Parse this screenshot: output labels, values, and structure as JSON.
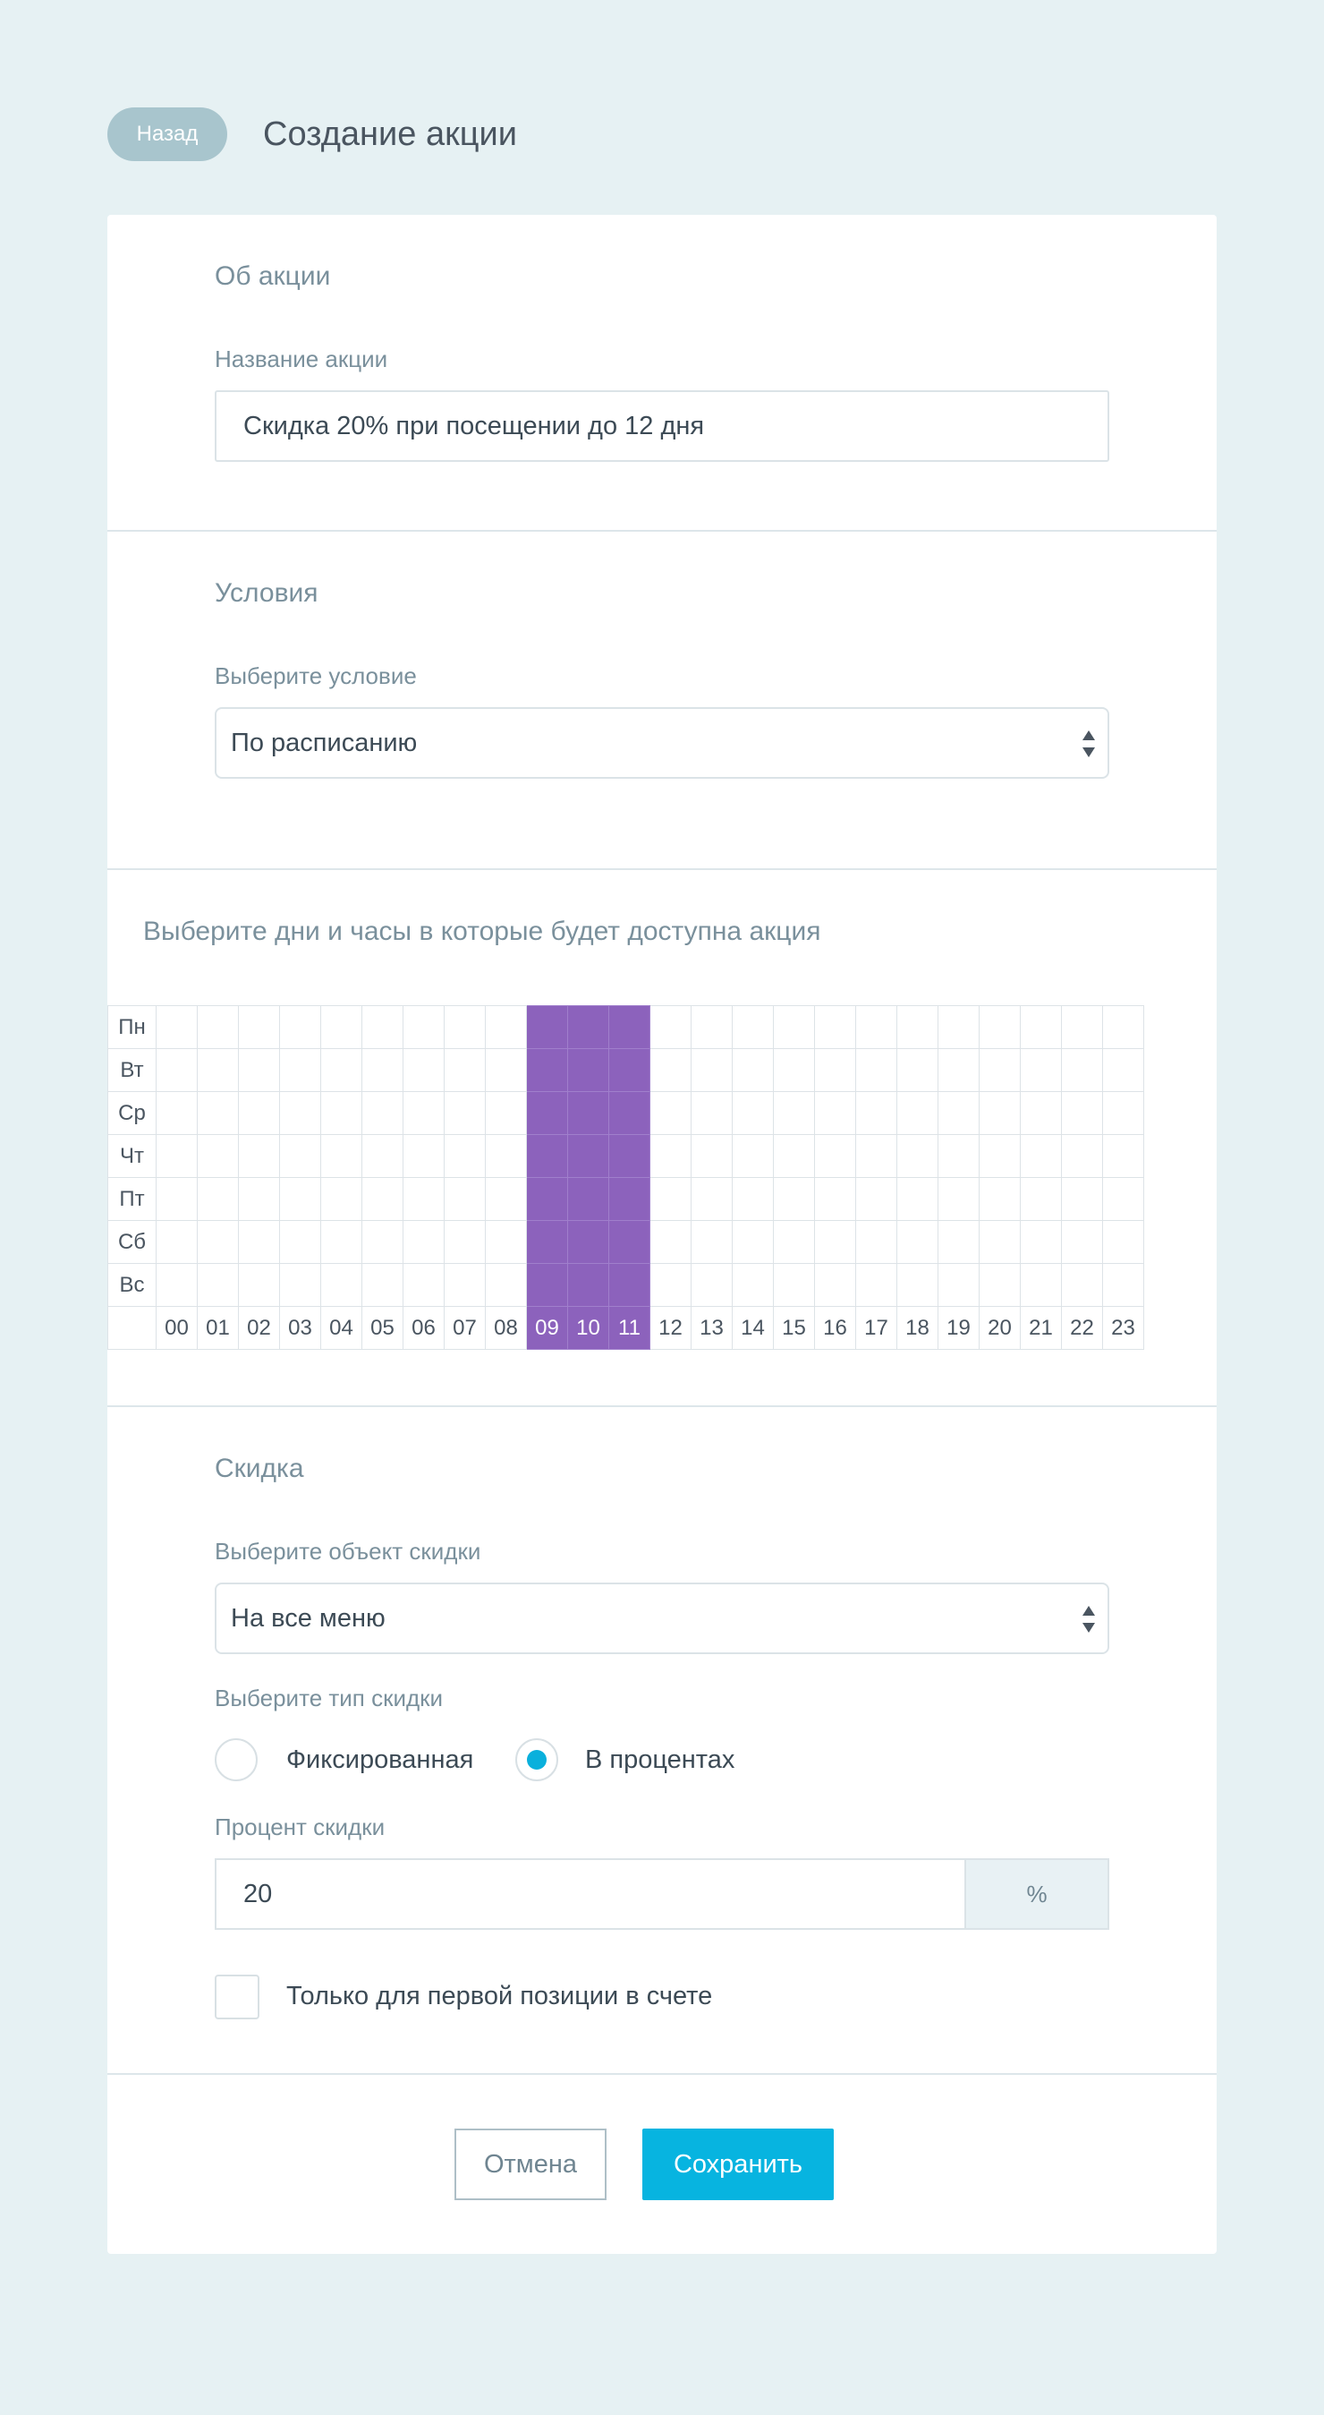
{
  "header": {
    "back_label": "Назад",
    "title": "Создание акции"
  },
  "about": {
    "section_title": "Об акции",
    "name_label": "Название акции",
    "name_value": "Скидка 20% при посещении до 12 дня"
  },
  "conditions": {
    "section_title": "Условия",
    "condition_label": "Выберите условие",
    "condition_value": "По расписанию"
  },
  "schedule": {
    "section_title": "Выберите дни и часы в которые будет доступна акция",
    "days": [
      "Пн",
      "Вт",
      "Ср",
      "Чт",
      "Пт",
      "Сб",
      "Вс"
    ],
    "hours": [
      "00",
      "01",
      "02",
      "03",
      "04",
      "05",
      "06",
      "07",
      "08",
      "09",
      "10",
      "11",
      "12",
      "13",
      "14",
      "15",
      "16",
      "17",
      "18",
      "19",
      "20",
      "21",
      "22",
      "23"
    ],
    "selected_hours": [
      "09",
      "10",
      "11"
    ],
    "selected_color": "#8c62bc"
  },
  "discount": {
    "section_title": "Скидка",
    "object_label": "Выберите объект скидки",
    "object_value": "На все меню",
    "type_label": "Выберите тип скидки",
    "type_options": [
      {
        "label": "Фиксированная",
        "checked": false
      },
      {
        "label": "В процентах",
        "checked": true
      }
    ],
    "percent_label": "Процент скидки",
    "percent_value": "20",
    "percent_unit": "%",
    "first_position_label": "Только для первой позиции в счете",
    "first_position_checked": false
  },
  "actions": {
    "cancel_label": "Отмена",
    "save_label": "Сохранить"
  },
  "colors": {
    "background": "#e6f1f3",
    "accent": "#07b4e0",
    "back_button": "#a8c5cd"
  }
}
